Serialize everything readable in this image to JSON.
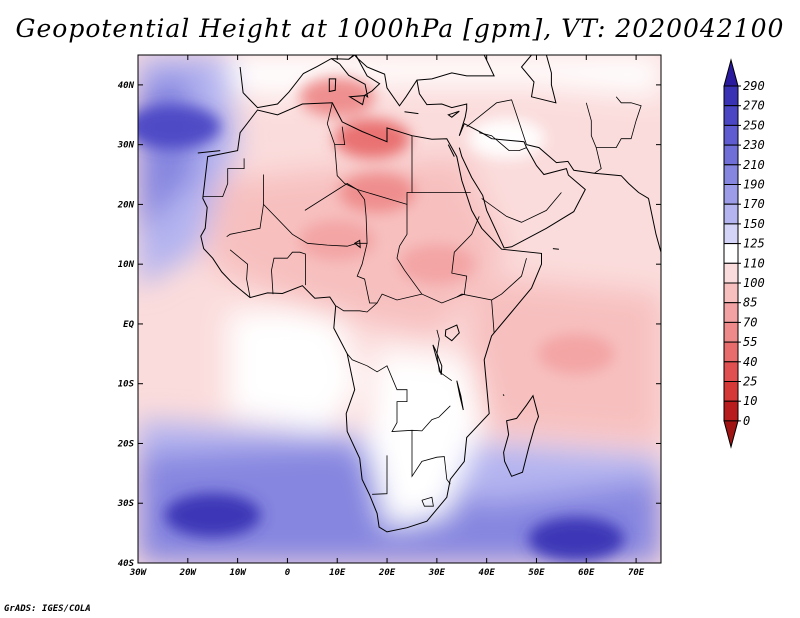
{
  "title": "Geopotential Height at 1000hPa [gpm], VT: 2020042100",
  "credit": "GrADS: IGES/COLA",
  "map": {
    "projection": "latlon",
    "lon_range": [
      -30,
      75
    ],
    "lat_range": [
      -40,
      45
    ],
    "lon_ticks": [
      {
        "value": -30,
        "label": "30W"
      },
      {
        "value": -20,
        "label": "20W"
      },
      {
        "value": -10,
        "label": "10W"
      },
      {
        "value": 0,
        "label": "0"
      },
      {
        "value": 10,
        "label": "10E"
      },
      {
        "value": 20,
        "label": "20E"
      },
      {
        "value": 30,
        "label": "30E"
      },
      {
        "value": 40,
        "label": "40E"
      },
      {
        "value": 50,
        "label": "50E"
      },
      {
        "value": 60,
        "label": "60E"
      },
      {
        "value": 70,
        "label": "70E"
      }
    ],
    "lat_ticks": [
      {
        "value": 40,
        "label": "40N"
      },
      {
        "value": 30,
        "label": "30N"
      },
      {
        "value": 20,
        "label": "20N"
      },
      {
        "value": 10,
        "label": "10N"
      },
      {
        "value": 0,
        "label": "EQ"
      },
      {
        "value": -10,
        "label": "10S"
      },
      {
        "value": -20,
        "label": "20S"
      },
      {
        "value": -30,
        "label": "30S"
      },
      {
        "value": -40,
        "label": "40S"
      }
    ],
    "field_features": [
      {
        "name": "north-atlantic-high",
        "lon": -23,
        "lat": 33,
        "value": 250
      },
      {
        "name": "south-atlantic-high",
        "lon": -15,
        "lat": -32,
        "value": 270
      },
      {
        "name": "indian-ocean-high",
        "lon": 58,
        "lat": -36,
        "value": 270
      },
      {
        "name": "libya-low",
        "lon": 17,
        "lat": 31,
        "value": 40
      },
      {
        "name": "sahara-low",
        "lon": 18,
        "lat": 22,
        "value": 55
      },
      {
        "name": "sahel-low",
        "lon": 10,
        "lat": 14,
        "value": 70
      },
      {
        "name": "east-africa-low",
        "lon": 30,
        "lat": 10,
        "value": 70
      },
      {
        "name": "mediterranean-low",
        "lon": 10,
        "lat": 38,
        "value": 55
      },
      {
        "name": "arabia-high",
        "lon": 44,
        "lat": 31,
        "value": 110
      },
      {
        "name": "indian-ocean-trough",
        "lon": 58,
        "lat": -5,
        "value": 70
      }
    ]
  },
  "colorbar": {
    "labels": [
      "290",
      "270",
      "250",
      "230",
      "210",
      "190",
      "170",
      "150",
      "125",
      "110",
      "100",
      "85",
      "70",
      "55",
      "40",
      "25",
      "10",
      "0"
    ],
    "colors": [
      "#2a1a9e",
      "#3a32b4",
      "#4b46c4",
      "#5e5cd0",
      "#706fd8",
      "#8686e0",
      "#9c9ce8",
      "#b4b4f0",
      "#d4d4f8",
      "#ffffff",
      "#fbdcdc",
      "#f7c0bf",
      "#f2a2a2",
      "#ee8a8a",
      "#e86c6c",
      "#e05050",
      "#d63838",
      "#b81c1c",
      "#a01414"
    ],
    "extend_top_color": "#2a1a9e",
    "extend_bottom_color": "#a01414"
  }
}
